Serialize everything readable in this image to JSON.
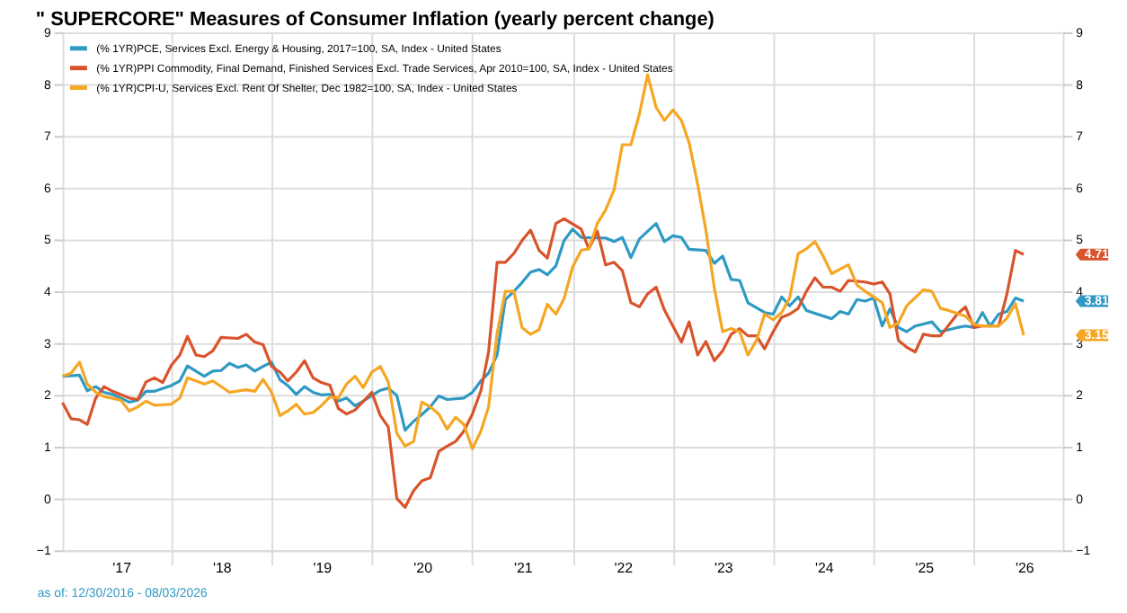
{
  "chart_data": {
    "type": "line",
    "title": "\" SUPERCORE\" Measures of Consumer Inflation (yearly percent change)",
    "series": [
      {
        "name": "(% 1YR)PCE, Services Excl. Energy & Housing, 2017=100, SA, Index - United States",
        "color": "#2e9ac4",
        "x": [
          "2016-12",
          "2017-02",
          "2017-03",
          "2017-04",
          "2017-05",
          "2017-06",
          "2017-08",
          "2017-09",
          "2017-10",
          "2017-11",
          "2018-01",
          "2018-02",
          "2018-03",
          "2018-05",
          "2018-06",
          "2018-07",
          "2018-08",
          "2018-09",
          "2018-10",
          "2018-11",
          "2018-12",
          "2019-01",
          "2019-02",
          "2019-03",
          "2019-04",
          "2019-05",
          "2019-06",
          "2019-07",
          "2019-08",
          "2019-09",
          "2019-10",
          "2019-11",
          "2019-12",
          "2020-02",
          "2020-03",
          "2020-04",
          "2020-05",
          "2020-06",
          "2020-07",
          "2020-08",
          "2020-09",
          "2020-10",
          "2020-12",
          "2021-01",
          "2021-02",
          "2021-03",
          "2021-04",
          "2021-05",
          "2021-06",
          "2021-07",
          "2021-08",
          "2021-09",
          "2021-10",
          "2021-11",
          "2021-12",
          "2022-01",
          "2022-02",
          "2022-04",
          "2022-05",
          "2022-06",
          "2022-07",
          "2022-08",
          "2022-09",
          "2022-11",
          "2022-12",
          "2023-01",
          "2023-02",
          "2023-03",
          "2023-05",
          "2023-06",
          "2023-07",
          "2023-08",
          "2023-09",
          "2023-10",
          "2023-12",
          "2024-01",
          "2024-02",
          "2024-03",
          "2024-04",
          "2024-05",
          "2024-08",
          "2024-09",
          "2024-10",
          "2024-11",
          "2024-12",
          "2025-01",
          "2025-02",
          "2025-03",
          "2025-04",
          "2025-05",
          "2025-06",
          "2025-08",
          "2025-09",
          "2025-11",
          "2025-12",
          "2026-01",
          "2026-02",
          "2026-03",
          "2026-04",
          "2026-05",
          "2026-06",
          "2026-07"
        ],
        "values": [
          2.36,
          2.38,
          2.08,
          2.16,
          2.05,
          2.01,
          1.86,
          1.9,
          2.07,
          2.07,
          2.18,
          2.27,
          2.56,
          2.36,
          2.46,
          2.47,
          2.61,
          2.53,
          2.58,
          2.46,
          2.55,
          2.63,
          2.29,
          2.18,
          2.01,
          2.16,
          2.05,
          2.0,
          2.01,
          1.88,
          1.94,
          1.79,
          1.88,
          2.09,
          2.13,
          1.99,
          1.32,
          1.49,
          1.62,
          1.77,
          1.98,
          1.91,
          1.94,
          2.05,
          2.27,
          2.42,
          2.77,
          3.84,
          4.0,
          4.17,
          4.37,
          4.42,
          4.32,
          4.49,
          4.98,
          5.2,
          5.04,
          5.03,
          5.03,
          4.96,
          5.04,
          4.65,
          5.01,
          5.31,
          4.96,
          5.07,
          5.04,
          4.81,
          4.79,
          4.54,
          4.68,
          4.23,
          4.21,
          3.78,
          3.59,
          3.56,
          3.89,
          3.72,
          3.89,
          3.63,
          3.47,
          3.61,
          3.56,
          3.84,
          3.81,
          3.87,
          3.33,
          3.66,
          3.3,
          3.22,
          3.33,
          3.41,
          3.22,
          3.3,
          3.33,
          3.3,
          3.59,
          3.33,
          3.56,
          3.61,
          3.87,
          3.81
        ]
      },
      {
        "name": "(% 1YR)PPI Commodity, Final Demand, Finished Services Excl. Trade Services, Apr 2010=100, SA, Index - United States",
        "color": "#d9532b",
        "x": [
          "2016-12",
          "2017-01",
          "2017-02",
          "2017-03",
          "2017-04",
          "2017-05",
          "2017-06",
          "2017-08",
          "2017-09",
          "2017-10",
          "2017-11",
          "2017-12",
          "2018-01",
          "2018-02",
          "2018-03",
          "2018-04",
          "2018-05",
          "2018-06",
          "2018-07",
          "2018-09",
          "2018-10",
          "2018-11",
          "2018-12",
          "2019-01",
          "2019-02",
          "2019-03",
          "2019-04",
          "2019-05",
          "2019-06",
          "2019-07",
          "2019-08",
          "2019-09",
          "2019-10",
          "2019-11",
          "2020-01",
          "2020-02",
          "2020-03",
          "2020-04",
          "2020-05",
          "2020-06",
          "2020-07",
          "2020-08",
          "2020-09",
          "2020-10",
          "2020-11",
          "2020-12",
          "2021-01",
          "2021-02",
          "2021-03",
          "2021-04",
          "2021-05",
          "2021-06",
          "2021-07",
          "2021-08",
          "2021-09",
          "2021-10",
          "2021-11",
          "2021-12",
          "2022-02",
          "2022-03",
          "2022-04",
          "2022-05",
          "2022-06",
          "2022-07",
          "2022-08",
          "2022-09",
          "2022-10",
          "2022-11",
          "2022-12",
          "2023-01",
          "2023-02",
          "2023-03",
          "2023-04",
          "2023-05",
          "2023-06",
          "2023-07",
          "2023-08",
          "2023-09",
          "2023-10",
          "2023-11",
          "2023-12",
          "2024-01",
          "2024-02",
          "2024-03",
          "2024-04",
          "2024-05",
          "2024-06",
          "2024-07",
          "2024-08",
          "2024-09",
          "2024-10",
          "2024-12",
          "2025-01",
          "2025-02",
          "2025-03",
          "2025-04",
          "2025-05",
          "2025-06",
          "2025-07",
          "2025-08",
          "2025-09",
          "2025-11",
          "2025-12",
          "2026-01",
          "2026-02",
          "2026-04",
          "2026-05",
          "2026-06",
          "2026-07"
        ],
        "values": [
          1.85,
          1.54,
          1.52,
          1.43,
          1.94,
          2.16,
          2.07,
          1.94,
          1.91,
          2.25,
          2.33,
          2.24,
          2.57,
          2.77,
          3.13,
          2.77,
          2.74,
          2.85,
          3.11,
          3.09,
          3.17,
          3.02,
          2.97,
          2.55,
          2.44,
          2.27,
          2.44,
          2.66,
          2.33,
          2.24,
          2.19,
          1.74,
          1.63,
          1.71,
          2.05,
          1.6,
          1.38,
          0.0,
          -0.17,
          0.15,
          0.34,
          0.4,
          0.91,
          1.01,
          1.1,
          1.3,
          1.63,
          2.08,
          2.83,
          4.56,
          4.56,
          4.73,
          4.98,
          5.18,
          4.79,
          4.64,
          5.31,
          5.4,
          5.2,
          4.82,
          5.16,
          4.51,
          4.56,
          4.4,
          3.78,
          3.7,
          3.95,
          4.08,
          3.64,
          3.33,
          3.02,
          3.41,
          2.77,
          3.03,
          2.66,
          2.85,
          3.17,
          3.28,
          3.14,
          3.14,
          2.89,
          3.22,
          3.5,
          3.56,
          3.67,
          4.0,
          4.26,
          4.08,
          4.08,
          4.0,
          4.21,
          4.18,
          4.14,
          4.18,
          3.95,
          3.05,
          2.92,
          2.83,
          3.17,
          3.14,
          3.14,
          3.56,
          3.7,
          3.3,
          3.33,
          3.33,
          3.95,
          4.79,
          4.71
        ]
      },
      {
        "name": "(% 1YR)CPI-U, Services Excl. Rent Of Shelter, Dec 1982=100, SA, Index - United States",
        "color": "#f5a623",
        "x": [
          "2016-12",
          "2017-01",
          "2017-02",
          "2017-03",
          "2017-04",
          "2017-05",
          "2017-07",
          "2017-08",
          "2017-09",
          "2017-10",
          "2017-11",
          "2018-01",
          "2018-02",
          "2018-03",
          "2018-05",
          "2018-06",
          "2018-08",
          "2018-10",
          "2018-11",
          "2018-12",
          "2019-01",
          "2019-02",
          "2019-03",
          "2019-04",
          "2019-05",
          "2019-06",
          "2019-07",
          "2019-08",
          "2019-09",
          "2019-10",
          "2019-11",
          "2019-12",
          "2020-01",
          "2020-02",
          "2020-03",
          "2020-04",
          "2020-05",
          "2020-06",
          "2020-07",
          "2020-08",
          "2020-09",
          "2020-10",
          "2020-11",
          "2020-12",
          "2021-01",
          "2021-02",
          "2021-03",
          "2021-04",
          "2021-05",
          "2021-06",
          "2021-07",
          "2021-08",
          "2021-09",
          "2021-10",
          "2021-11",
          "2021-12",
          "2022-01",
          "2022-02",
          "2022-03",
          "2022-04",
          "2022-05",
          "2022-06",
          "2022-07",
          "2022-08",
          "2022-09",
          "2022-10",
          "2022-11",
          "2022-12",
          "2023-01",
          "2023-02",
          "2023-03",
          "2023-04",
          "2023-05",
          "2023-06",
          "2023-07",
          "2023-08",
          "2023-09",
          "2023-10",
          "2023-11",
          "2023-12",
          "2024-01",
          "2024-02",
          "2024-03",
          "2024-04",
          "2024-05",
          "2024-06",
          "2024-07",
          "2024-08",
          "2024-09",
          "2024-10",
          "2024-11",
          "2024-12",
          "2025-01",
          "2025-02",
          "2025-03",
          "2025-04",
          "2025-05",
          "2025-07",
          "2025-08",
          "2025-09",
          "2025-10",
          "2025-12",
          "2026-01",
          "2026-02",
          "2026-04",
          "2026-05",
          "2026-06",
          "2026-07"
        ],
        "values": [
          2.36,
          2.42,
          2.63,
          2.21,
          2.05,
          1.97,
          1.9,
          1.69,
          1.77,
          1.88,
          1.8,
          1.82,
          1.94,
          2.33,
          2.21,
          2.27,
          2.05,
          2.1,
          2.07,
          2.3,
          2.05,
          1.6,
          1.69,
          1.82,
          1.63,
          1.66,
          1.79,
          1.96,
          1.94,
          2.21,
          2.36,
          2.14,
          2.44,
          2.55,
          2.25,
          1.26,
          1.01,
          1.1,
          1.86,
          1.77,
          1.63,
          1.34,
          1.57,
          1.43,
          0.96,
          1.3,
          1.77,
          3.19,
          4.0,
          4.0,
          3.3,
          3.17,
          3.26,
          3.75,
          3.56,
          3.86,
          4.47,
          4.79,
          4.82,
          5.31,
          5.57,
          5.96,
          6.83,
          6.83,
          7.42,
          8.18,
          7.55,
          7.3,
          7.5,
          7.3,
          6.87,
          6.07,
          5.18,
          4.06,
          3.22,
          3.28,
          3.22,
          2.77,
          3.05,
          3.56,
          3.45,
          3.59,
          3.87,
          4.73,
          4.82,
          4.96,
          4.68,
          4.34,
          4.43,
          4.51,
          4.12,
          4.0,
          3.89,
          3.78,
          3.3,
          3.39,
          3.72,
          4.03,
          4.0,
          3.67,
          3.63,
          3.52,
          3.36,
          3.33,
          3.33,
          3.48,
          3.76,
          3.15
        ]
      }
    ],
    "xlim": [
      "2016-12-01",
      "2026-11-20"
    ],
    "xticks": [
      {
        "value": "2017-07-02",
        "label": "'17"
      },
      {
        "value": "2018-01-01",
        "label": null
      },
      {
        "value": "2018-07-02",
        "label": "'18"
      },
      {
        "value": "2019-01-01",
        "label": null
      },
      {
        "value": "2019-07-02",
        "label": "'19"
      },
      {
        "value": "2020-01-01",
        "label": null
      },
      {
        "value": "2020-07-02",
        "label": "'20"
      },
      {
        "value": "2021-01-01",
        "label": null
      },
      {
        "value": "2021-07-02",
        "label": "'21"
      },
      {
        "value": "2022-01-01",
        "label": null
      },
      {
        "value": "2022-07-02",
        "label": "'22"
      },
      {
        "value": "2023-01-01",
        "label": null
      },
      {
        "value": "2023-07-02",
        "label": "'23"
      },
      {
        "value": "2024-01-01",
        "label": null
      },
      {
        "value": "2024-07-02",
        "label": "'24"
      },
      {
        "value": "2025-01-01",
        "label": null
      },
      {
        "value": "2025-07-02",
        "label": "'25"
      },
      {
        "value": "2026-01-01",
        "label": null
      },
      {
        "value": "2026-07-02",
        "label": "'26"
      }
    ],
    "ylim": [
      -1,
      9
    ],
    "yticks": [
      -1,
      0,
      1,
      2,
      3,
      4,
      5,
      6,
      7,
      8,
      9
    ],
    "y2lim": [
      -1,
      9
    ],
    "y2ticks": [
      -1,
      0,
      1,
      2,
      3,
      4,
      5,
      6,
      7,
      8,
      9
    ],
    "grid": true,
    "legend": "top left",
    "marker": "none",
    "line_style": "solid",
    "annotations": [
      "as of: 12/30/2016 - 08/03/2026",
      "3.81",
      "4.71",
      "3.15"
    ]
  }
}
